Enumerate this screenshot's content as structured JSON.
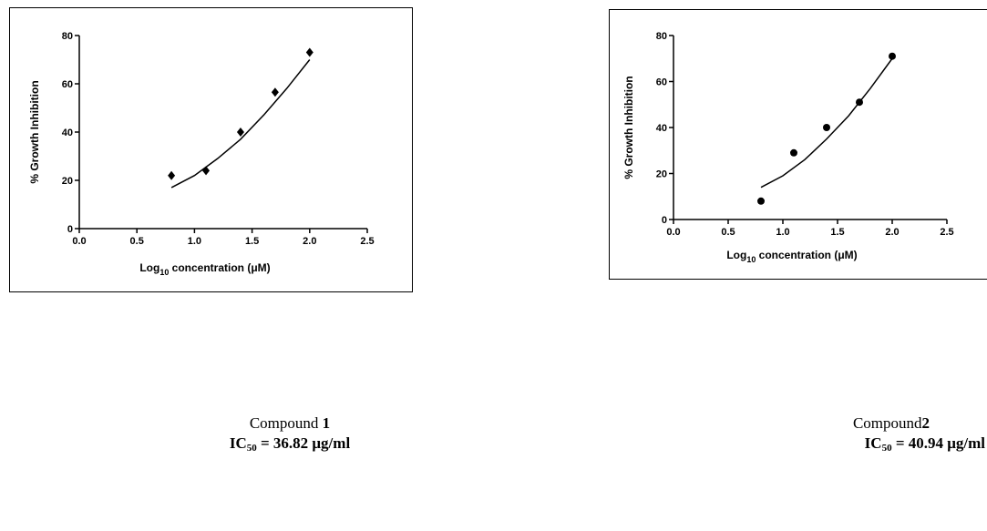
{
  "chart_data": [
    {
      "type": "scatter",
      "marker": "diamond",
      "color": "#000000",
      "ylabel": "% Growth Inhibition",
      "xlabel": {
        "text": "Log",
        "sub": "10",
        "rest": " concentration (μM)"
      },
      "x": [
        0.8,
        1.1,
        1.4,
        1.7,
        2.0
      ],
      "values": [
        22,
        24,
        40,
        56.5,
        73
      ],
      "fit": {
        "x": [
          0.8,
          1.0,
          1.2,
          1.4,
          1.6,
          1.8,
          2.0
        ],
        "values": [
          17,
          22,
          29,
          37,
          47,
          58,
          70
        ]
      },
      "xlim": [
        0,
        2.5
      ],
      "xticks": [
        {
          "value": 0,
          "label": "0.0"
        },
        0.5,
        {
          "value": 1,
          "label": "1.0"
        },
        1.5,
        {
          "value": 2,
          "label": "2.0"
        },
        2.5
      ],
      "ylim": [
        0,
        80
      ],
      "yticks": [
        0,
        20,
        40,
        60,
        80
      ]
    },
    {
      "type": "scatter",
      "marker": "circle",
      "color": "#000000",
      "ylabel": "% Growth Inhibition",
      "xlabel": {
        "text": "Log",
        "sub": "10",
        "rest": " concentration (μM)"
      },
      "x": [
        0.8,
        1.1,
        1.4,
        1.7,
        2.0
      ],
      "values": [
        8,
        29,
        40,
        51,
        71
      ],
      "fit": {
        "x": [
          0.8,
          1.0,
          1.2,
          1.4,
          1.6,
          1.8,
          2.0
        ],
        "values": [
          14,
          19,
          26,
          35,
          45,
          57,
          70
        ]
      },
      "xlim": [
        0,
        2.5
      ],
      "xticks": [
        {
          "value": 0,
          "label": "0.0"
        },
        0.5,
        {
          "value": 1,
          "label": "1.0"
        },
        1.5,
        {
          "value": 2,
          "label": "2.0"
        },
        2.5
      ],
      "ylim": [
        0,
        80
      ],
      "yticks": [
        0,
        20,
        40,
        60,
        80
      ]
    }
  ],
  "captions": [
    {
      "name": "Compound ",
      "number": "1",
      "ic": "IC",
      "sub": "50",
      "value": " = 36.82 μg/ml"
    },
    {
      "name": "Compound",
      "number": "2",
      "ic": "IC",
      "sub": "50",
      "value": " = 40.94 μg/ml"
    }
  ]
}
